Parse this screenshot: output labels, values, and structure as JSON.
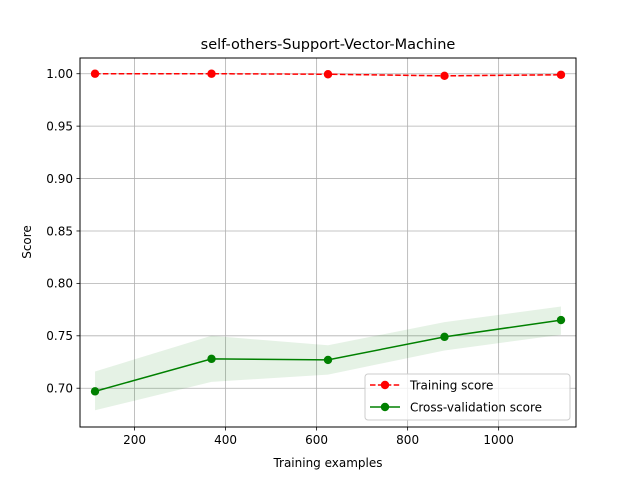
{
  "chart_data": {
    "type": "line",
    "title": "self-others-Support-Vector-Machine",
    "xlabel": "Training examples",
    "ylabel": "Score",
    "xlim": [
      80,
      1170
    ],
    "ylim": [
      0.663,
      1.015
    ],
    "x_ticks": [
      200,
      400,
      600,
      800,
      1000
    ],
    "y_ticks": [
      0.7,
      0.75,
      0.8,
      0.85,
      0.9,
      0.95,
      1.0
    ],
    "grid": true,
    "legend_position": "lower-right",
    "x": [
      113,
      369,
      625,
      881,
      1137
    ],
    "series": [
      {
        "name": "Training score",
        "color": "#ff0000",
        "line_style": "dashed",
        "marker": "circle",
        "values": [
          1.0,
          1.0,
          0.9995,
          0.998,
          0.999
        ],
        "band_lower": [
          1.0,
          1.0,
          0.999,
          0.997,
          0.998
        ],
        "band_upper": [
          1.0,
          1.0,
          1.0,
          0.999,
          1.0
        ]
      },
      {
        "name": "Cross-validation score",
        "color": "#008000",
        "line_style": "solid",
        "marker": "circle",
        "values": [
          0.697,
          0.728,
          0.727,
          0.749,
          0.765
        ],
        "band_lower": [
          0.679,
          0.706,
          0.713,
          0.736,
          0.751
        ],
        "band_upper": [
          0.716,
          0.75,
          0.741,
          0.763,
          0.778
        ]
      }
    ]
  }
}
